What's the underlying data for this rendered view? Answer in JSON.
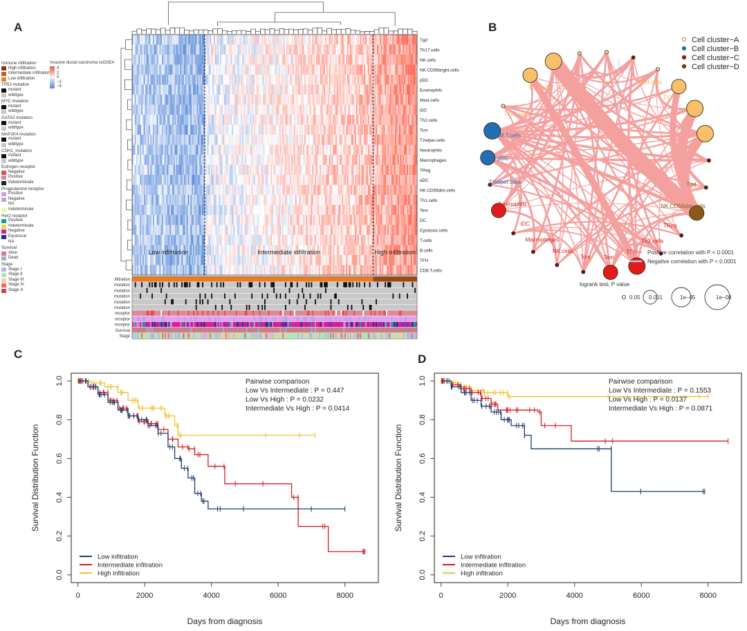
{
  "panels": {
    "A": "A",
    "B": "B",
    "C": "C",
    "D": "D"
  },
  "heatmap": {
    "scale_title": "Invasive ductal carcinoma ssGSEA",
    "scale_ticks": [
      "4",
      "2",
      "0",
      "−2",
      "−4"
    ],
    "rows": [
      "Tgd",
      "Th17.cells",
      "NK.cells",
      "NK.CD56bright.cells",
      "pDC",
      "Eosinophils",
      "Mast.cells",
      "iDC",
      "Th2.cells",
      "Tcm",
      "T.helper.cells",
      "Neutrophils",
      "Macrophages",
      "TReg",
      "aDC",
      "NK.CD56dim.cells",
      "Th1.cells",
      "Tem",
      "DC",
      "Cytotoxic.cells",
      "T.cells",
      "B.cells",
      "TFH",
      "CD8.T.cells"
    ],
    "groups": [
      "Low infiltration",
      "Intermediate infiltration",
      "High infiltration"
    ],
    "annotation_tracks": [
      "Immune infiltration",
      "TP53 mutation",
      "MYC mutation",
      "GATA3 mutation",
      "MAP2K4 mutation",
      "CDH1 mutation",
      "Estrogen receptor",
      "Progesterone receptor",
      "Her2 receptor",
      "Survival",
      "Stage"
    ],
    "legend": [
      {
        "title": "Immune infiltration",
        "items": [
          {
            "label": "High infiltration",
            "color": "#7a3b0c"
          },
          {
            "label": "Intermediate infiltration",
            "color": "#c75d14"
          },
          {
            "label": "Low infiltration",
            "color": "#ee7f22"
          }
        ]
      },
      {
        "title": "TP53 mutation",
        "items": [
          {
            "label": "mutant",
            "color": "#111111"
          },
          {
            "label": "wildtype",
            "color": "#c8c8c8"
          }
        ]
      },
      {
        "title": "MYC mutation",
        "items": [
          {
            "label": "mutant",
            "color": "#111111"
          },
          {
            "label": "wildtype",
            "color": "#c8c8c8"
          }
        ]
      },
      {
        "title": "GATA3 mutation",
        "items": [
          {
            "label": "mutant",
            "color": "#111111"
          },
          {
            "label": "wildtype",
            "color": "#c8c8c8"
          }
        ]
      },
      {
        "title": "MAP2K4 mutation",
        "items": [
          {
            "label": "mutant",
            "color": "#111111"
          },
          {
            "label": "wildtype",
            "color": "#c8c8c8"
          }
        ]
      },
      {
        "title": "CDH1_mutation",
        "items": [
          {
            "label": "mutant",
            "color": "#111111"
          },
          {
            "label": "wildtype",
            "color": "#c8c8c8"
          }
        ]
      },
      {
        "title": "Estrogen receptor",
        "items": [
          {
            "label": "Negative",
            "color": "#e84a4a"
          },
          {
            "label": "Positive",
            "color": "#d98a95"
          },
          {
            "label": "Indeterminate",
            "color": "#222222"
          }
        ]
      },
      {
        "title": "Progesterone receptor",
        "items": [
          {
            "label": "Positive",
            "color": "#d79be8"
          },
          {
            "label": "Negative",
            "color": "#b9a3e3"
          },
          {
            "label": "NA",
            "color": ""
          },
          {
            "label": "Indeterminate",
            "color": "#eef5b0"
          }
        ]
      },
      {
        "title": "Her2 receptor",
        "items": [
          {
            "label": "Positive",
            "color": "#1b9a96"
          },
          {
            "label": "Indeterminate",
            "color": "#e8d84a"
          },
          {
            "label": "Negative",
            "color": "#e0189a"
          },
          {
            "label": "Equivocal",
            "color": "#2a2a8a"
          },
          {
            "label": "NA",
            "color": ""
          }
        ]
      },
      {
        "title": "Survival",
        "items": [
          {
            "label": "Alive",
            "color": "#c77d8a"
          },
          {
            "label": "Dead",
            "color": "#9fb0c9"
          }
        ]
      },
      {
        "title": "Stage",
        "items": [
          {
            "label": "Stage I",
            "color": "#b3b3ee"
          },
          {
            "label": "Stage II",
            "color": "#a8eab0"
          },
          {
            "label": "Stage III",
            "color": "#f3cf9a"
          },
          {
            "label": "Stage IV",
            "color": "#ee6a5c"
          },
          {
            "label": "Stage X",
            "color": "#e03a3a"
          }
        ]
      }
    ]
  },
  "network": {
    "legend": [
      {
        "label": "Cell cluster−A",
        "color": "#f9bf6b"
      },
      {
        "label": "Cell cluster−B",
        "color": "#1f6fb4"
      },
      {
        "label": "Cell cluster−C",
        "color": "#8b1a1a"
      },
      {
        "label": "Cell cluster−D",
        "color": "#6b3a12"
      }
    ],
    "edge_legend": [
      {
        "label": "Positive correlation with P < 0.0001",
        "color": "#f3908f"
      },
      {
        "label": "Negative correlation with P < 0.0001",
        "color": "#a9cbe3"
      }
    ],
    "size_legend_title": "logrank test, P value",
    "size_legend": [
      "0.05",
      "0.001",
      "1e−05",
      "1e−08"
    ],
    "nodes": [
      {
        "label": "Th1.cells",
        "cluster": "A",
        "size": 2
      },
      {
        "label": "",
        "cluster": "A",
        "size": 3
      },
      {
        "label": "",
        "cluster": "A",
        "size": 0
      },
      {
        "label": "",
        "cluster": "A",
        "size": 0
      },
      {
        "label": "",
        "cluster": "D",
        "size": 0
      },
      {
        "label": "Mast.cells",
        "cluster": "A",
        "size": 0
      },
      {
        "label": "DC",
        "cluster": "A",
        "size": 2
      },
      {
        "label": "",
        "cluster": "A",
        "size": 3
      },
      {
        "label": "",
        "cluster": "A",
        "size": 3
      },
      {
        "label": "",
        "cluster": "C",
        "size": 0
      },
      {
        "label": "Tgd",
        "cluster": "D",
        "size": 0
      },
      {
        "label": "NK.CD56dim.cells",
        "cluster": "D",
        "size": 2
      },
      {
        "label": "TReg",
        "cluster": "C",
        "size": 0
      },
      {
        "label": "Th2.cells",
        "cluster": "C",
        "size": 0
      },
      {
        "label": "TFH",
        "cluster": "C",
        "size": 3
      },
      {
        "label": "Tem",
        "cluster": "C",
        "size": 2
      },
      {
        "label": "Tcm",
        "cluster": "C",
        "size": 0
      },
      {
        "label": "NK.cells",
        "cluster": "C",
        "size": 0
      },
      {
        "label": "Macrophages",
        "cluster": "C",
        "size": 0
      },
      {
        "label": "iDC",
        "cluster": "C",
        "size": 0
      },
      {
        "label": "Eosinophils",
        "cluster": "C",
        "size": 2
      },
      {
        "label": "T.helper.cells",
        "cluster": "B",
        "size": 0
      },
      {
        "label": "pDC",
        "cluster": "B",
        "size": 2
      },
      {
        "label": "CD8.T.cells",
        "cluster": "B",
        "size": 3
      },
      {
        "label": "Th17.cells",
        "cluster": "A",
        "size": 0
      }
    ]
  },
  "chart_data": [
    {
      "id": "C",
      "type": "line",
      "title": "",
      "xlabel": "Days from diagnosis",
      "ylabel": "Survival Distribution Function",
      "xlim": [
        0,
        9000
      ],
      "ylim": [
        0,
        1.0
      ],
      "xticks": [
        "0",
        "2000",
        "4000",
        "6000",
        "8000"
      ],
      "yticks": [
        "0.0",
        "0.2",
        "0.4",
        "0.6",
        "0.8",
        "1.0"
      ],
      "legend_position": "bottom-left",
      "annotation": [
        "Pairwise comparison",
        "Low Vs Intermediate : P = 0.447",
        "Low Vs High : P = 0.0232",
        "Intermediate Vs High : P = 0.0414"
      ],
      "series": [
        {
          "name": "Low infitration",
          "color": "#1f3a6e",
          "x": [
            0,
            300,
            600,
            900,
            1200,
            1500,
            1800,
            2100,
            2400,
            2700,
            2900,
            3100,
            3300,
            3500,
            3700,
            3900,
            4500,
            8000
          ],
          "y": [
            1.0,
            0.97,
            0.93,
            0.89,
            0.85,
            0.82,
            0.8,
            0.77,
            0.73,
            0.66,
            0.6,
            0.55,
            0.5,
            0.42,
            0.38,
            0.34,
            0.34,
            0.34
          ]
        },
        {
          "name": "Intermediate infitration",
          "color": "#d7191c",
          "x": [
            0,
            300,
            600,
            900,
            1200,
            1500,
            1800,
            2100,
            2400,
            2700,
            3000,
            3300,
            3500,
            3900,
            4400,
            6400,
            6600,
            7500,
            8600
          ],
          "y": [
            1.0,
            0.97,
            0.94,
            0.9,
            0.86,
            0.82,
            0.79,
            0.78,
            0.75,
            0.7,
            0.66,
            0.65,
            0.62,
            0.56,
            0.47,
            0.4,
            0.25,
            0.12,
            0.12
          ]
        },
        {
          "name": "High infitration",
          "color": "#f2c12e",
          "x": [
            0,
            400,
            800,
            1200,
            1500,
            1800,
            2200,
            2600,
            2900,
            3000,
            3100,
            7100
          ],
          "y": [
            1.0,
            0.99,
            0.97,
            0.94,
            0.9,
            0.86,
            0.86,
            0.82,
            0.77,
            0.72,
            0.72,
            0.72
          ]
        }
      ]
    },
    {
      "id": "D",
      "type": "line",
      "title": "",
      "xlabel": "Days from diagnosis",
      "ylabel": "Survival Distribution Function",
      "xlim": [
        0,
        9000
      ],
      "ylim": [
        0,
        1.0
      ],
      "xticks": [
        "0",
        "2000",
        "4000",
        "6000",
        "8000"
      ],
      "yticks": [
        "0.0",
        "0.2",
        "0.4",
        "0.6",
        "0.8",
        "1.0"
      ],
      "legend_position": "bottom-left",
      "annotation": [
        "Pairwise comparison",
        "Low Vs Intermediate : P = 0.1553",
        "Low Vs High : P = 0.0137",
        "Intermediate Vs High : P = 0.0871"
      ],
      "series": [
        {
          "name": "Low infitration",
          "color": "#1f3a6e",
          "x": [
            0,
            300,
            600,
            900,
            1200,
            1500,
            1800,
            2100,
            2500,
            2700,
            5100,
            5100,
            7900
          ],
          "y": [
            1.0,
            0.97,
            0.94,
            0.9,
            0.87,
            0.84,
            0.8,
            0.77,
            0.72,
            0.65,
            0.65,
            0.43,
            0.43
          ]
        },
        {
          "name": "Intermediate infitration",
          "color": "#d7191c",
          "x": [
            0,
            300,
            600,
            900,
            1200,
            1500,
            1700,
            2100,
            2900,
            3000,
            3900,
            8600
          ],
          "y": [
            1.0,
            0.98,
            0.96,
            0.94,
            0.91,
            0.88,
            0.85,
            0.85,
            0.84,
            0.77,
            0.69,
            0.69
          ]
        },
        {
          "name": "High infitration",
          "color": "#f2c12e",
          "x": [
            0,
            300,
            600,
            900,
            1300,
            1700,
            2000,
            8000
          ],
          "y": [
            1.0,
            0.99,
            0.97,
            0.95,
            0.94,
            0.94,
            0.92,
            0.92
          ]
        }
      ]
    }
  ]
}
